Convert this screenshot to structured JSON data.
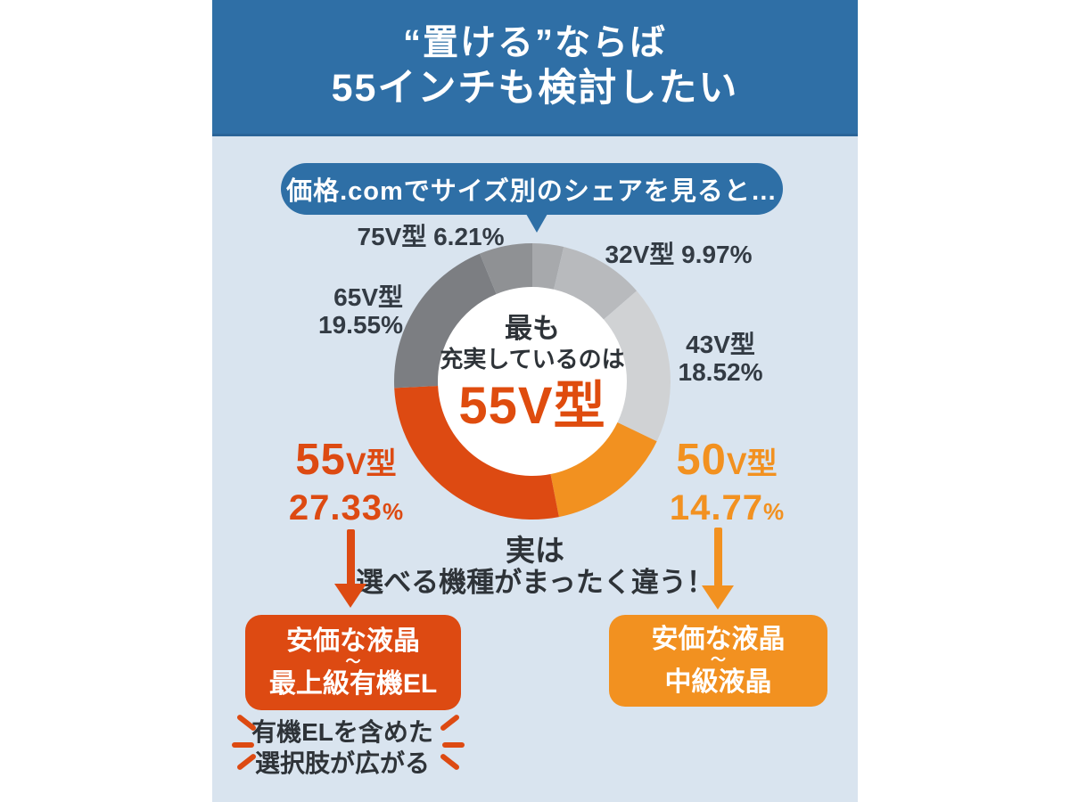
{
  "header": {
    "line1": "“置ける”ならば",
    "line2": "55インチも検討したい"
  },
  "bubble": {
    "text": "価格.comでサイズ別のシェアを見ると…"
  },
  "chart_data": {
    "type": "pie",
    "donut": true,
    "title": "価格.comでサイズ別のシェアを見ると…",
    "unit": "%",
    "start_angle_deg": 0,
    "direction": "clockwise",
    "segments": [
      {
        "label": "",
        "value": 3.65,
        "color": "#a7a9ac"
      },
      {
        "label": "32V型",
        "value": 9.97,
        "color": "#b8babd"
      },
      {
        "label": "43V型",
        "value": 18.52,
        "color": "#d0d2d4"
      },
      {
        "label": "50V型",
        "value": 14.77,
        "color": "#f29120"
      },
      {
        "label": "55V型",
        "value": 27.33,
        "color": "#dd4a12"
      },
      {
        "label": "65V型",
        "value": 19.55,
        "color": "#7c7e82"
      },
      {
        "label": "75V型",
        "value": 6.21,
        "color": "#8f9194"
      }
    ]
  },
  "donut_labels": {
    "l75": "75V型 6.21%",
    "l32": "32V型 9.97%",
    "l65_name": "65V型",
    "l65_pct": "19.55%",
    "l43_name": "43V型",
    "l43_pct": "18.52%"
  },
  "center": {
    "line1": "最も",
    "line2": "充実しているのは",
    "line3": "55V型"
  },
  "callout_left": {
    "size": "55",
    "unit": "V型",
    "percent": "27.33",
    "percent_sign": "%"
  },
  "callout_right": {
    "size": "50",
    "unit": "V型",
    "percent": "14.77",
    "percent_sign": "%"
  },
  "fact": {
    "line1": "実は",
    "line2": "選べる機種がまったく違う！"
  },
  "box_left": {
    "line1": "安価な液晶",
    "tilde": "〜",
    "line2": "最上級有機EL"
  },
  "box_right": {
    "line1": "安価な液晶",
    "tilde": "〜",
    "line2": "中級液晶"
  },
  "burst": {
    "line1": "有機ELを含めた",
    "line2": "選択肢が広がる"
  },
  "colors": {
    "header_blue": "#2f6fa6",
    "panel_blue": "#d9e4ef",
    "accent_red_orange": "#dd4a12",
    "accent_orange": "#f29120",
    "text_dark": "#2e3338"
  }
}
